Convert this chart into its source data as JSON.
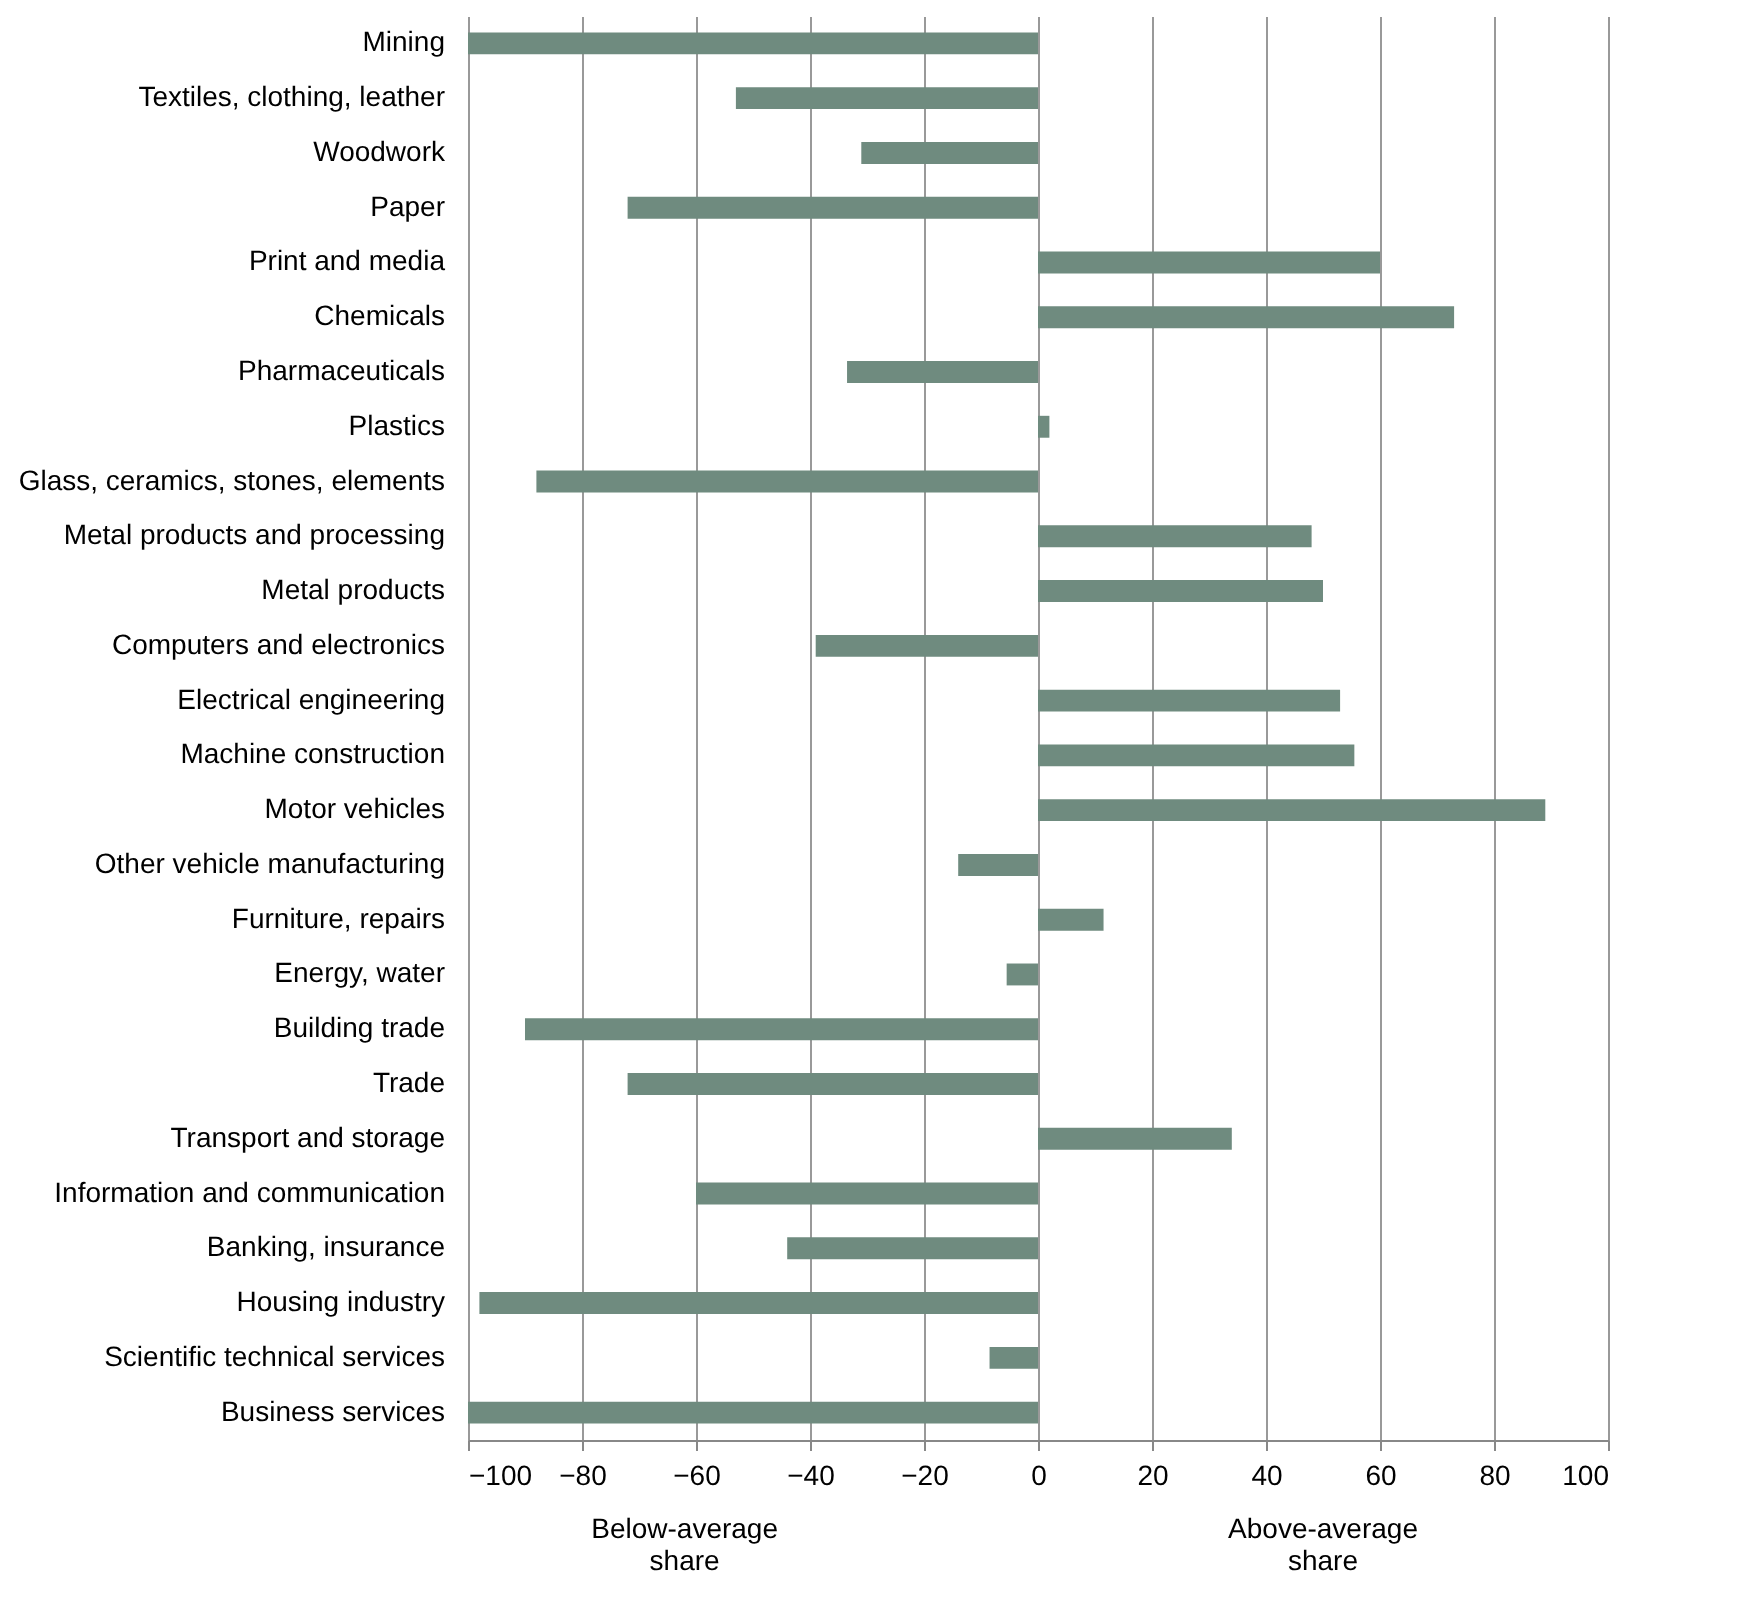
{
  "chart_data": {
    "type": "bar",
    "orientation": "horizontal",
    "categories": [
      "Mining",
      "Textiles, clothing, leather",
      "Woodwork",
      "Paper",
      "Print and media",
      "Chemicals",
      "Pharmaceuticals",
      "Plastics",
      "Glass, ceramics, stones, elements",
      "Metal products and processing",
      "Metal products",
      "Computers and electronics",
      "Electrical engineering",
      "Machine construction",
      "Motor vehicles",
      "Other vehicle manufacturing",
      "Furniture, repairs",
      "Energy, water",
      "Building trade",
      "Trade",
      "Transport and storage",
      "Information and communication",
      "Banking, insurance",
      "Housing industry",
      "Scientific technical services",
      "Business services"
    ],
    "values": [
      -100,
      -53,
      -31,
      -72,
      60,
      73,
      -33.5,
      2,
      -88,
      48,
      50,
      -39,
      53,
      55.5,
      89,
      -14,
      11.5,
      -5.5,
      -90,
      -72,
      34,
      -60,
      -44,
      -98,
      -8.5,
      -100
    ],
    "color": "#6f8b7f",
    "xlim": [
      -100,
      100
    ],
    "xticks": [
      -100,
      -80,
      -60,
      -40,
      -20,
      0,
      20,
      40,
      60,
      80,
      100
    ],
    "grid": "x",
    "annotations": [
      "Below-average share",
      "Above-average share"
    ]
  }
}
